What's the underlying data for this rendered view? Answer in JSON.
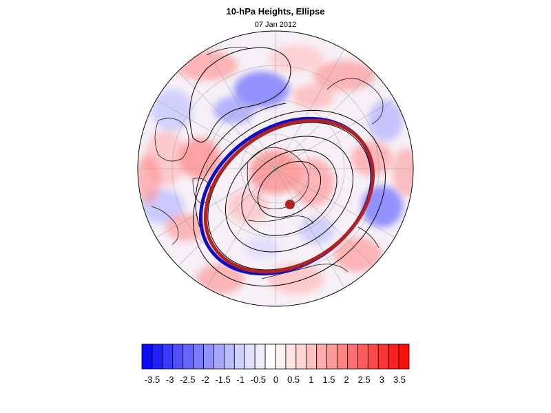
{
  "title": "10-hPa Heights, Ellipse",
  "subtitle": "07 Jan 2012",
  "map": {
    "projection": "polar-stereographic-north",
    "overlays": [
      "fitted-ellipse-red",
      "fitted-ellipse-blue",
      "ellipse-center-dot",
      "height-contours-black",
      "coastlines"
    ],
    "colors": {
      "ellipse_red": "#b22222",
      "ellipse_blue": "#1010c0",
      "contour": "#000000"
    }
  },
  "colorbar": {
    "labels": [
      "-3.5",
      "-3",
      "-2.5",
      "-2",
      "-1.5",
      "-1",
      "-0.5",
      "0",
      "0.5",
      "1",
      "1.5",
      "2",
      "2.5",
      "3",
      "3.5"
    ],
    "colors": [
      "#0a0aff",
      "#2020ff",
      "#3a3aff",
      "#5050ff",
      "#6666ff",
      "#7b7bff",
      "#9090ff",
      "#a6a6ff",
      "#bbbbff",
      "#d0d0ff",
      "#e0e0ff",
      "#eeeefc",
      "#ffffff",
      "#fdf0f0",
      "#ffe4e4",
      "#ffd4d4",
      "#ffc0c0",
      "#ffacac",
      "#ff9898",
      "#ff8484",
      "#ff7070",
      "#ff5c5c",
      "#ff4848",
      "#ff3434",
      "#ff2020",
      "#ff0c0c"
    ]
  }
}
